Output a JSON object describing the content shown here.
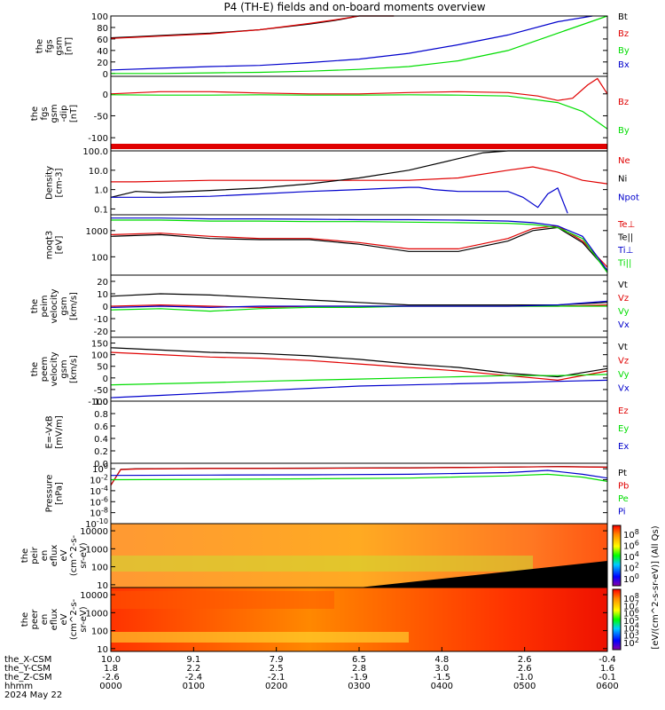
{
  "title": "P4 (TH-E) fields and on-board moments overview",
  "colors": {
    "black": "#000000",
    "red": "#e00000",
    "green": "#00dd00",
    "blue": "#0000cc"
  },
  "chart_data": [
    {
      "type": "line",
      "ylabel": [
        "the",
        "fgs",
        "gsm",
        "[nT]"
      ],
      "ylim": [
        -5,
        100
      ],
      "yticks": [
        0,
        20,
        40,
        60,
        80,
        100
      ],
      "series": [
        {
          "name": "Bt",
          "color": "black",
          "x": [
            0,
            5,
            10,
            20,
            30,
            40,
            45,
            50,
            55,
            57
          ],
          "y": [
            62,
            64,
            66,
            70,
            76,
            86,
            92,
            100,
            105,
            110
          ]
        },
        {
          "name": "Bz",
          "color": "red",
          "x": [
            0,
            5,
            10,
            20,
            30,
            40,
            45,
            50,
            55,
            57
          ],
          "y": [
            61,
            63,
            65,
            69,
            76,
            87,
            93,
            101,
            106,
            111
          ]
        },
        {
          "name": "By",
          "color": "green",
          "x": [
            0,
            10,
            20,
            30,
            40,
            50,
            60,
            70,
            80,
            90,
            100
          ],
          "y": [
            0,
            0,
            1,
            2,
            4,
            7,
            12,
            22,
            40,
            70,
            102
          ]
        },
        {
          "name": "Bx",
          "color": "blue",
          "x": [
            0,
            10,
            20,
            30,
            40,
            50,
            60,
            70,
            80,
            90,
            97
          ],
          "y": [
            6,
            9,
            12,
            14,
            19,
            25,
            35,
            50,
            67,
            90,
            102
          ]
        }
      ]
    },
    {
      "type": "line",
      "ylabel": [
        "the",
        "fgs",
        "gsm",
        "-dip",
        "[nT]"
      ],
      "ylim": [
        -130,
        40
      ],
      "yticks": [
        -100,
        -50,
        0
      ],
      "series": [
        {
          "name": "Bz",
          "color": "red",
          "x": [
            0,
            10,
            20,
            30,
            40,
            50,
            60,
            70,
            80,
            86,
            90,
            93,
            96,
            98,
            100
          ],
          "y": [
            0,
            5,
            5,
            2,
            0,
            0,
            3,
            5,
            3,
            -5,
            -15,
            -10,
            20,
            35,
            0
          ]
        },
        {
          "name": "By",
          "color": "green",
          "x": [
            0,
            10,
            20,
            30,
            40,
            50,
            60,
            70,
            80,
            90,
            95,
            100
          ],
          "y": [
            -2,
            -3,
            -3,
            -2,
            -3,
            -3,
            -2,
            -3,
            -5,
            -20,
            -40,
            -80
          ]
        }
      ]
    },
    {
      "type": "line",
      "ylabel": [
        "Density",
        "[cm-3]"
      ],
      "ylim": [
        0.05,
        100
      ],
      "scale": "log",
      "ytick_labels": [
        "0.1",
        "1.0",
        "10.0",
        "100.0"
      ],
      "yticks": [
        0.1,
        1,
        10,
        100
      ],
      "series": [
        {
          "name": "Ne",
          "color": "red",
          "x": [
            0,
            5,
            20,
            40,
            60,
            70,
            80,
            85,
            90,
            95,
            100
          ],
          "y": [
            2.5,
            2.5,
            3,
            3,
            3,
            4,
            10,
            15,
            8,
            3,
            2
          ]
        },
        {
          "name": "Ni",
          "color": "black",
          "x": [
            0,
            5,
            10,
            20,
            30,
            40,
            50,
            60,
            70,
            75,
            80,
            100
          ],
          "y": [
            0.4,
            0.8,
            0.7,
            0.9,
            1.2,
            2,
            4,
            10,
            40,
            80,
            100,
            100
          ]
        },
        {
          "name": "Npot",
          "color": "blue",
          "x": [
            0,
            10,
            20,
            30,
            40,
            50,
            60,
            62,
            65,
            70,
            80,
            83,
            86,
            88,
            90,
            92
          ],
          "y": [
            0.4,
            0.4,
            0.45,
            0.6,
            0.8,
            1.0,
            1.3,
            1.3,
            1.0,
            0.8,
            0.8,
            0.4,
            0.12,
            0.6,
            1.2,
            0.06
          ]
        }
      ]
    },
    {
      "type": "line",
      "ylabel": [
        "moqt3",
        "[eV]"
      ],
      "ylim": [
        20,
        4000
      ],
      "scale": "log",
      "ytick_labels": [
        "100",
        "1000"
      ],
      "yticks": [
        100,
        1000
      ],
      "series": [
        {
          "name": "Te⊥",
          "color": "red",
          "x": [
            0,
            10,
            20,
            30,
            40,
            50,
            60,
            70,
            80,
            85,
            90,
            95,
            100
          ],
          "y": [
            700,
            800,
            600,
            500,
            500,
            350,
            200,
            200,
            500,
            1200,
            1500,
            400,
            40
          ]
        },
        {
          "name": "Te||",
          "color": "black",
          "x": [
            0,
            10,
            20,
            30,
            40,
            50,
            60,
            70,
            80,
            85,
            90,
            95,
            100
          ],
          "y": [
            600,
            700,
            500,
            450,
            450,
            300,
            160,
            160,
            400,
            1000,
            1300,
            350,
            30
          ]
        },
        {
          "name": "Ti⊥",
          "color": "blue",
          "x": [
            0,
            10,
            20,
            30,
            40,
            50,
            60,
            70,
            80,
            85,
            90,
            95,
            100
          ],
          "y": [
            3000,
            3000,
            2800,
            2800,
            2700,
            2600,
            2600,
            2500,
            2300,
            2000,
            1500,
            600,
            30
          ]
        },
        {
          "name": "Ti||",
          "color": "green",
          "x": [
            0,
            10,
            20,
            30,
            40,
            50,
            60,
            70,
            80,
            85,
            90,
            95,
            100
          ],
          "y": [
            2500,
            2500,
            2300,
            2300,
            2200,
            2200,
            2100,
            2000,
            1900,
            1700,
            1300,
            500,
            25
          ]
        }
      ]
    },
    {
      "type": "line",
      "ylabel": [
        "the",
        "peim",
        "velocity",
        "gsm",
        "[km/s]"
      ],
      "ylim": [
        -25,
        25
      ],
      "yticks": [
        -20,
        -10,
        0,
        10,
        20
      ],
      "series": [
        {
          "name": "Vt",
          "color": "black",
          "x": [
            0,
            10,
            20,
            30,
            40,
            50,
            60,
            70,
            80,
            90,
            100
          ],
          "y": [
            8,
            10,
            9,
            7,
            5,
            3,
            1,
            1,
            1,
            1,
            3
          ]
        },
        {
          "name": "Vz",
          "color": "red",
          "x": [
            0,
            10,
            20,
            30,
            40,
            50,
            60,
            70,
            80,
            90,
            100
          ],
          "y": [
            0,
            1,
            0,
            -1,
            0,
            0,
            0,
            0,
            0,
            0,
            1
          ]
        },
        {
          "name": "Vy",
          "color": "green",
          "x": [
            0,
            10,
            20,
            30,
            40,
            50,
            60,
            70,
            80,
            90,
            100
          ],
          "y": [
            -3,
            -2,
            -4,
            -2,
            -1,
            -1,
            0,
            0,
            0,
            0,
            0
          ]
        },
        {
          "name": "Vx",
          "color": "blue",
          "x": [
            0,
            10,
            20,
            30,
            40,
            50,
            60,
            70,
            80,
            90,
            100
          ],
          "y": [
            -1,
            0,
            -1,
            0,
            0,
            0,
            0,
            0,
            0,
            1,
            4
          ]
        }
      ]
    },
    {
      "type": "line",
      "ylabel": [
        "the",
        "peem",
        "velocity",
        "gsm",
        "[km/s]"
      ],
      "ylim": [
        -100,
        175
      ],
      "yticks": [
        -100,
        -50,
        0,
        50,
        100,
        150
      ],
      "series": [
        {
          "name": "Vt",
          "color": "black",
          "x": [
            0,
            10,
            20,
            30,
            40,
            50,
            60,
            70,
            80,
            90,
            100
          ],
          "y": [
            130,
            120,
            110,
            105,
            95,
            80,
            60,
            45,
            20,
            5,
            40
          ]
        },
        {
          "name": "Vz",
          "color": "red",
          "x": [
            0,
            10,
            20,
            30,
            40,
            50,
            60,
            70,
            80,
            90,
            100
          ],
          "y": [
            110,
            100,
            90,
            85,
            75,
            60,
            45,
            30,
            10,
            -10,
            30
          ]
        },
        {
          "name": "Vy",
          "color": "green",
          "x": [
            0,
            10,
            20,
            30,
            40,
            50,
            60,
            70,
            80,
            90,
            100
          ],
          "y": [
            -30,
            -25,
            -20,
            -15,
            -10,
            -5,
            0,
            5,
            10,
            10,
            15
          ]
        },
        {
          "name": "Vx",
          "color": "blue",
          "x": [
            0,
            10,
            20,
            30,
            40,
            50,
            60,
            70,
            80,
            90,
            100
          ],
          "y": [
            -85,
            -75,
            -65,
            -55,
            -45,
            -35,
            -30,
            -25,
            -20,
            -15,
            -10
          ]
        }
      ]
    },
    {
      "type": "line",
      "ylabel": [
        "E=-VxB",
        "[mV/m]"
      ],
      "ylim": [
        0,
        1
      ],
      "yticks": [
        0.0,
        0.2,
        0.4,
        0.6,
        0.8,
        1.0
      ],
      "ytick_labels": [
        "0.0",
        "0.2",
        "0.4",
        "0.6",
        "0.8",
        "1.0"
      ],
      "series": [
        {
          "name": "Ez",
          "color": "red",
          "x": [],
          "y": []
        },
        {
          "name": "Ey",
          "color": "green",
          "x": [],
          "y": []
        },
        {
          "name": "Ex",
          "color": "blue",
          "x": [],
          "y": []
        }
      ]
    },
    {
      "type": "line",
      "ylabel": [
        "Pressure",
        "[nPa]"
      ],
      "ylim": [
        1e-10,
        10
      ],
      "scale": "log",
      "ytick_exponents": [
        "0",
        "-2",
        "-4",
        "-6",
        "-8",
        "-10"
      ],
      "yticks": [
        1,
        0.01,
        0.0001,
        1e-06,
        1e-08,
        1e-10
      ],
      "series": [
        {
          "name": "Pt",
          "color": "black",
          "x": [
            0,
            2,
            5,
            20,
            40,
            60,
            80,
            90,
            100
          ],
          "y": [
            0.001,
            0.8,
            1,
            1.2,
            1.3,
            1.5,
            2,
            2.5,
            2
          ]
        },
        {
          "name": "Pb",
          "color": "red",
          "x": [
            0,
            2,
            5,
            20,
            40,
            60,
            80,
            90,
            100
          ],
          "y": [
            0.001,
            0.7,
            0.9,
            1.1,
            1.2,
            1.4,
            2,
            2.4,
            1.9
          ]
        },
        {
          "name": "Pe",
          "color": "green",
          "x": [
            0,
            20,
            40,
            60,
            80,
            88,
            95,
            100
          ],
          "y": [
            0.01,
            0.012,
            0.015,
            0.02,
            0.05,
            0.1,
            0.03,
            0.005
          ]
        },
        {
          "name": "Pi",
          "color": "blue",
          "x": [
            0,
            20,
            40,
            60,
            80,
            88,
            95,
            100
          ],
          "y": [
            0.06,
            0.07,
            0.08,
            0.1,
            0.2,
            0.5,
            0.1,
            0.02
          ]
        }
      ]
    },
    {
      "type": "heatmap",
      "ylabel": [
        "the",
        "peir",
        "en",
        "eflux",
        "eV",
        "(cm^2-s-",
        "sr-eV)"
      ],
      "scale": "log",
      "ytick_labels": [
        "10",
        "100",
        "1000",
        "10000"
      ],
      "yticks": [
        10,
        100,
        1000,
        10000
      ],
      "ylim": [
        7,
        25000
      ]
    },
    {
      "type": "heatmap",
      "ylabel": [
        "the",
        "peer",
        "en",
        "eflux",
        "eV",
        "(cm^2-s-",
        "sr-eV)"
      ],
      "scale": "log",
      "ytick_labels": [
        "10",
        "100",
        "1000",
        "10000"
      ],
      "yticks": [
        10,
        100,
        1000,
        10000
      ],
      "ylim": [
        7,
        25000
      ]
    }
  ],
  "colorbar": {
    "label": "[eV/(cm^2-s-sr-eV)] (All Qs)",
    "tick_exponents": [
      "8",
      "6",
      "4",
      "2",
      "0"
    ],
    "tick_exponents_lower": [
      "8",
      "7",
      "6",
      "5",
      "4",
      "3",
      "2"
    ]
  },
  "x_axis": {
    "rows": [
      {
        "label": "the_X-CSM",
        "values": [
          "10.0",
          "9.1",
          "7.9",
          "6.5",
          "4.8",
          "2.6",
          "-0.4"
        ]
      },
      {
        "label": "the_Y-CSM",
        "values": [
          "1.8",
          "2.2",
          "2.5",
          "2.8",
          "3.0",
          "2.6",
          "1.6"
        ]
      },
      {
        "label": "the_Z-CSM",
        "values": [
          "-2.6",
          "-2.4",
          "-2.1",
          "-1.9",
          "-1.5",
          "-1.0",
          "-0.1"
        ]
      },
      {
        "label": "hhmm",
        "values": [
          "0000",
          "0100",
          "0200",
          "0300",
          "0400",
          "0500",
          "0600"
        ]
      }
    ],
    "date": "2024 May 22"
  }
}
